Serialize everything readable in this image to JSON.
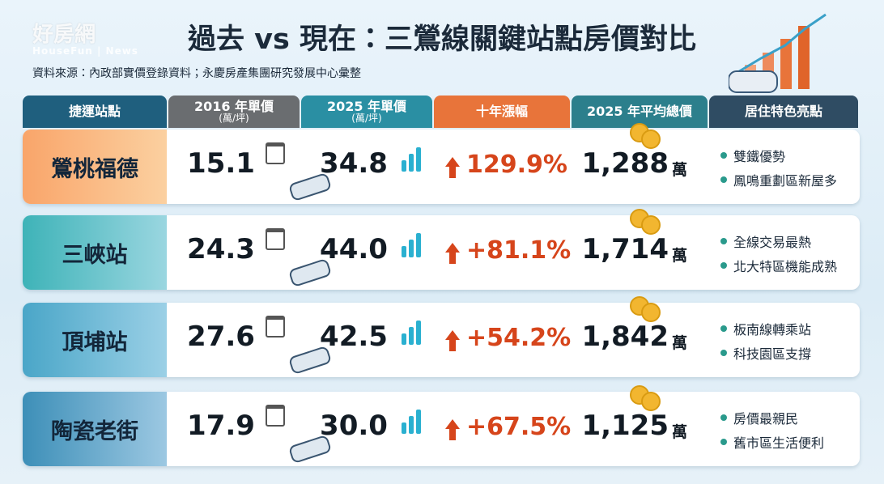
{
  "watermark": {
    "brand": "好房網",
    "sub": "HouseFun | News"
  },
  "header": {
    "title": "過去 vs 現在：三鶯線關鍵站點房價對比",
    "source": "資料來源：內政部實價登錄資料；永慶房產集團研究發展中心彙整"
  },
  "table": {
    "headers": [
      {
        "label": "捷運站點"
      },
      {
        "label": "2016 年單價",
        "unit": "(萬/坪)"
      },
      {
        "label": "2025 年單價",
        "unit": "(萬/坪)"
      },
      {
        "label": "十年漲幅"
      },
      {
        "label": "2025 年平均總價"
      },
      {
        "label": "居住特色亮點"
      }
    ],
    "rows": [
      {
        "station": "鶯桃福德",
        "price_2016": "15.1",
        "price_2025": "34.8",
        "growth": "129.9%",
        "total": "1,288",
        "total_unit": "萬",
        "highlights": [
          "雙鐵優勢",
          "鳳鳴重劃區新屋多"
        ]
      },
      {
        "station": "三峽站",
        "price_2016": "24.3",
        "price_2025": "44.0",
        "growth": "+81.1%",
        "total": "1,714",
        "total_unit": "萬",
        "highlights": [
          "全線交易最熱",
          "北大特區機能成熟"
        ]
      },
      {
        "station": "頂埔站",
        "price_2016": "27.6",
        "price_2025": "42.5",
        "growth": "+54.2%",
        "total": "1,842",
        "total_unit": "萬",
        "highlights": [
          "板南線轉乘站",
          "科技園區支撐"
        ]
      },
      {
        "station": "陶瓷老街",
        "price_2016": "17.9",
        "price_2025": "30.0",
        "growth": "+67.5%",
        "total": "1,125",
        "total_unit": "萬",
        "highlights": [
          "房價最親民",
          "舊市區生活便利"
        ]
      }
    ]
  }
}
